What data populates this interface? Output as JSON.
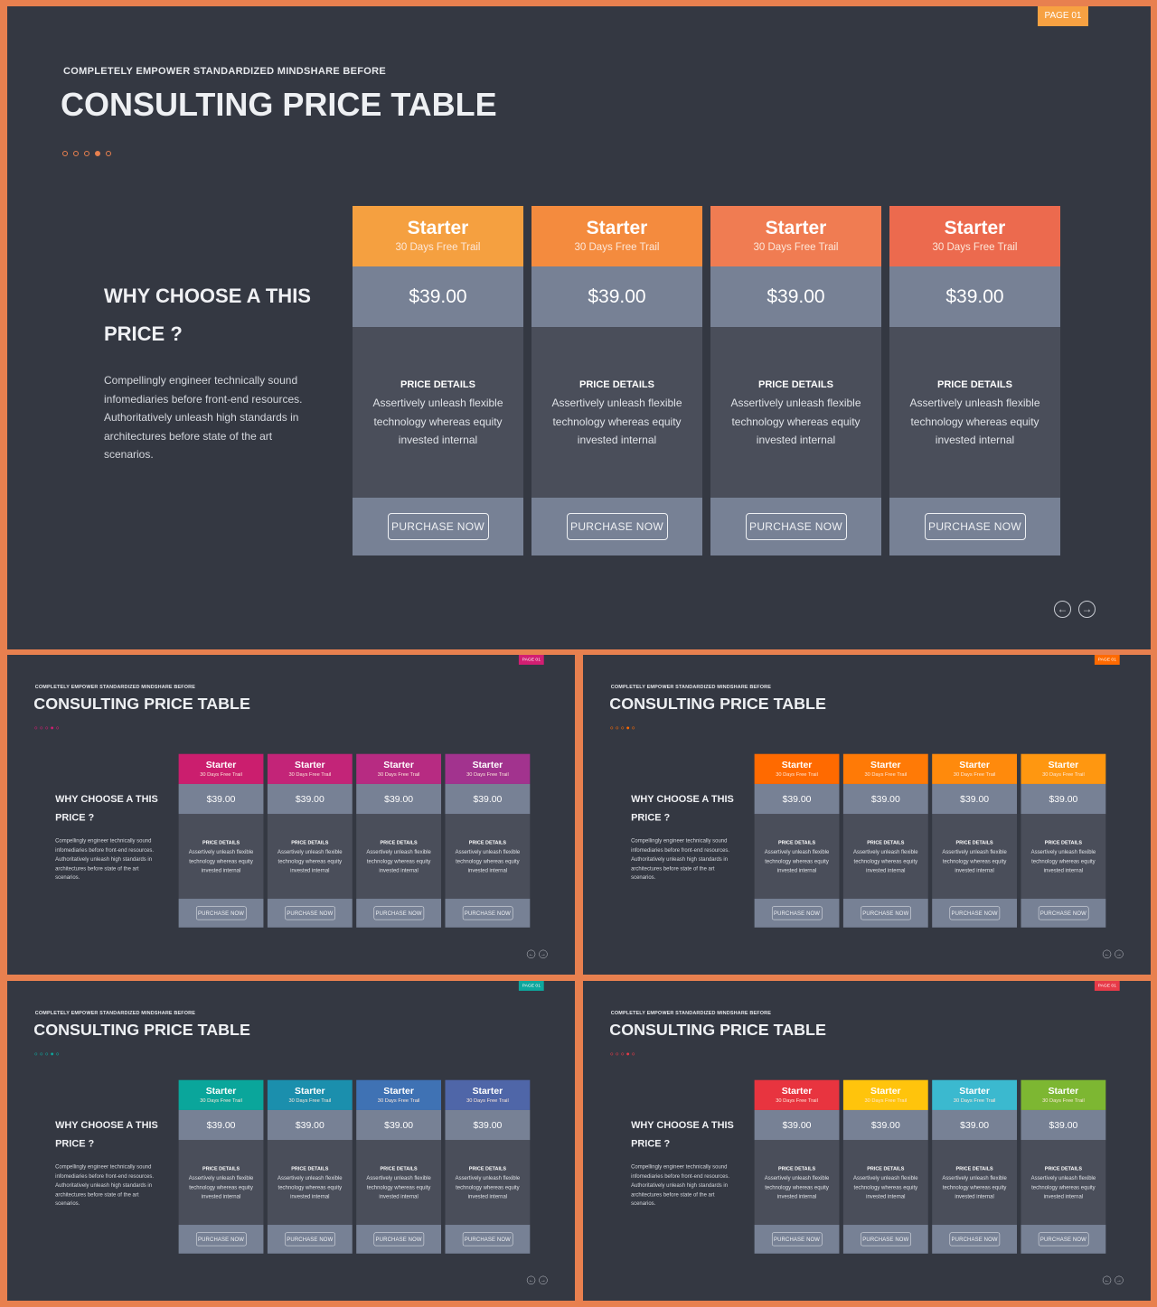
{
  "common": {
    "subtitle": "COMPLETELY EMPOWER STANDARDIZED MINDSHARE BEFORE",
    "title": "CONSULTING PRICE TABLE",
    "badge": "PAGE 01",
    "why_title": "WHY CHOOSE A THIS PRICE ?",
    "description": "Compellingly engineer technically sound infomediaries before front-end resources. Authoritatively unleash high standards in architectures before state of the art scenarios.",
    "card": {
      "plan": "Starter",
      "trial": "30 Days Free Trail",
      "price": "$39.00",
      "details_heading": "PRICE DETAILS",
      "details_text": "Assertively unleash flexible technology whereas equity invested internal",
      "button": "PURCHASE NOW"
    },
    "prev_icon": "arrow-left-circle-icon",
    "next_icon": "arrow-right-circle-icon"
  },
  "slides": [
    {
      "id": "s0",
      "badge_color": "#f7a142",
      "dot_color": "#e8804f",
      "active_dot": 3,
      "card_colors": [
        "#f5a040",
        "#f48b3e",
        "#f07c52",
        "#ec6a4e"
      ]
    },
    {
      "id": "s1",
      "badge_color": "#d21e72",
      "dot_color": "#d21e72",
      "active_dot": 3,
      "card_colors": [
        "#cb1e6e",
        "#c32478",
        "#b72b82",
        "#a2338e"
      ]
    },
    {
      "id": "s2",
      "badge_color": "#ff6a00",
      "dot_color": "#ff6a00",
      "active_dot": 3,
      "card_colors": [
        "#ff6a00",
        "#ff7a06",
        "#ff8a0c",
        "#ff9710"
      ]
    },
    {
      "id": "s3",
      "badge_color": "#0ea79d",
      "dot_color": "#0ea79d",
      "active_dot": 3,
      "card_colors": [
        "#0aa69b",
        "#1b8fad",
        "#3f72b4",
        "#4f66a8"
      ]
    },
    {
      "id": "s4",
      "badge_color": "#e83a48",
      "dot_color": "#e83a48",
      "active_dot": 3,
      "card_colors": [
        "#e8343f",
        "#ffc40c",
        "#3bb9cf",
        "#7db732"
      ]
    }
  ]
}
